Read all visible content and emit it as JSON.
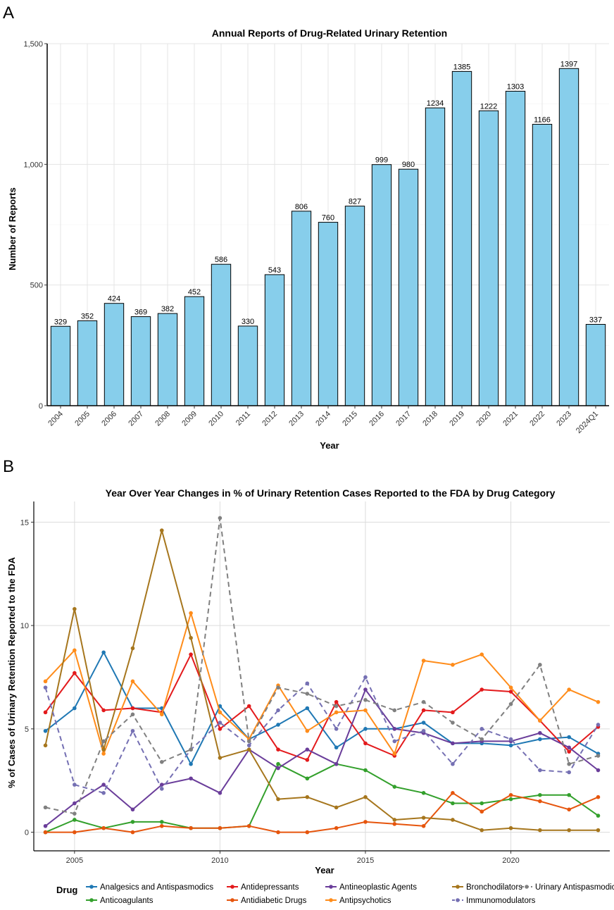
{
  "panels": {
    "a": "A",
    "b": "B"
  },
  "chart_data": [
    {
      "type": "bar",
      "title": "Annual Reports of Drug-Related Urinary Retention",
      "xlabel": "Year",
      "ylabel": "Number of Reports",
      "ylim": [
        0,
        1500
      ],
      "yticks": [
        0,
        500,
        1000,
        1500
      ],
      "ytick_labels": [
        "0",
        "500",
        "1,000",
        "1,500"
      ],
      "categories": [
        "2004",
        "2005",
        "2006",
        "2007",
        "2008",
        "2009",
        "2010",
        "2011",
        "2012",
        "2013",
        "2014",
        "2015",
        "2016",
        "2017",
        "2018",
        "2019",
        "2020",
        "2021",
        "2022",
        "2023",
        "2024Q1"
      ],
      "values": [
        329,
        352,
        424,
        369,
        382,
        452,
        586,
        330,
        543,
        806,
        760,
        827,
        999,
        980,
        1234,
        1385,
        1222,
        1303,
        1166,
        1397,
        337
      ],
      "bar_color": "#87CEEB",
      "grid": true
    },
    {
      "type": "line",
      "title": "Year Over Year Changes in % of Urinary Retention Cases Reported to the FDA by Drug Category",
      "xlabel": "Year",
      "ylabel": "% of Cases of Urinary Retention Reported to the FDA",
      "xlim": [
        2003.6,
        2023.4
      ],
      "ylim": [
        -0.9,
        16.0
      ],
      "xticks": [
        2005,
        2010,
        2015,
        2020
      ],
      "yticks": [
        0,
        5,
        10,
        15
      ],
      "x": [
        2004,
        2005,
        2006,
        2007,
        2008,
        2009,
        2010,
        2011,
        2012,
        2013,
        2014,
        2015,
        2016,
        2017,
        2018,
        2019,
        2020,
        2021,
        2022,
        2023
      ],
      "legend_title": "Drug",
      "series": [
        {
          "name": "Analgesics and Antispasmodics",
          "color": "#1F78B4",
          "dash": false,
          "values": [
            4.9,
            6.0,
            8.7,
            6.0,
            6.0,
            3.3,
            6.1,
            4.5,
            5.2,
            6.0,
            4.1,
            5.0,
            5.0,
            5.3,
            4.3,
            4.3,
            4.2,
            4.5,
            4.6,
            3.8
          ]
        },
        {
          "name": "Anticoagulants",
          "color": "#33A02C",
          "dash": false,
          "values": [
            0.0,
            0.6,
            0.2,
            0.5,
            0.5,
            0.2,
            0.2,
            0.3,
            3.3,
            2.6,
            3.3,
            3.0,
            2.2,
            1.9,
            1.4,
            1.4,
            1.6,
            1.8,
            1.8,
            0.8
          ]
        },
        {
          "name": "Antidepressants",
          "color": "#E31A1C",
          "dash": false,
          "values": [
            5.8,
            7.7,
            5.9,
            6.0,
            5.8,
            8.6,
            5.0,
            6.1,
            4.0,
            3.5,
            6.3,
            4.3,
            3.7,
            5.9,
            5.8,
            6.9,
            6.8,
            5.4,
            3.9,
            5.1
          ]
        },
        {
          "name": "Antidiabetic Drugs",
          "color": "#E6550D",
          "dash": false,
          "values": [
            0.0,
            0.0,
            0.2,
            0.0,
            0.3,
            0.2,
            0.2,
            0.3,
            0.0,
            0.0,
            0.2,
            0.5,
            0.4,
            0.3,
            1.9,
            1.0,
            1.8,
            1.5,
            1.1,
            1.7
          ]
        },
        {
          "name": "Antineoplastic Agents",
          "color": "#6A3D9A",
          "dash": false,
          "values": [
            0.3,
            1.4,
            2.3,
            1.1,
            2.3,
            2.6,
            1.9,
            4.0,
            3.1,
            4.0,
            3.3,
            6.9,
            5.0,
            4.8,
            4.3,
            4.4,
            4.4,
            4.8,
            4.1,
            3.0
          ]
        },
        {
          "name": "Antipsychotics",
          "color": "#FF8C1A",
          "dash": false,
          "values": [
            7.3,
            8.8,
            3.8,
            7.3,
            5.7,
            10.6,
            5.8,
            4.5,
            7.1,
            4.9,
            5.8,
            5.9,
            3.8,
            8.3,
            8.1,
            8.6,
            7.0,
            5.4,
            6.9,
            6.3
          ]
        },
        {
          "name": "Bronchodilators",
          "color": "#A6761D",
          "dash": false,
          "values": [
            4.2,
            10.8,
            4.0,
            8.9,
            14.6,
            9.4,
            3.6,
            4.0,
            1.6,
            1.7,
            1.2,
            1.7,
            0.6,
            0.7,
            0.6,
            0.1,
            0.2,
            0.1,
            0.1,
            0.1
          ]
        },
        {
          "name": "Immunomodulators",
          "color": "#7570B3",
          "dash": true,
          "values": [
            7.0,
            2.3,
            1.9,
            4.9,
            2.1,
            4.0,
            5.3,
            4.2,
            5.9,
            7.2,
            5.0,
            7.5,
            4.4,
            4.9,
            3.3,
            5.0,
            4.5,
            3.0,
            2.9,
            5.2
          ]
        },
        {
          "name": "Urinary Antispasmodics",
          "color": "#808080",
          "dash": true,
          "values": [
            1.2,
            0.9,
            4.4,
            5.7,
            3.4,
            4.0,
            15.2,
            4.4,
            7.0,
            6.7,
            6.1,
            6.4,
            5.9,
            6.3,
            5.3,
            4.5,
            6.2,
            8.1,
            3.3,
            3.7
          ]
        }
      ],
      "grid": true,
      "legend_position": "bottom"
    }
  ]
}
